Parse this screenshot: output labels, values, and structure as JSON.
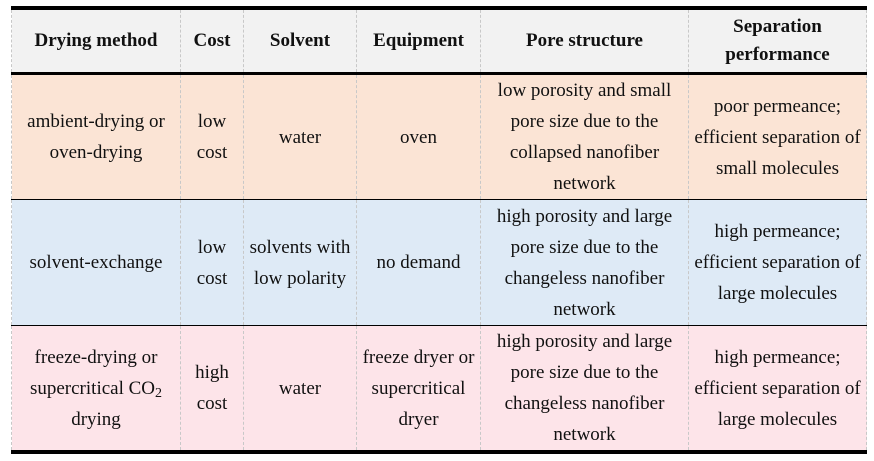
{
  "headers": [
    "Drying method",
    "Cost",
    "Solvent",
    "Equipment",
    "Pore structure",
    "Separation performance"
  ],
  "rows": [
    {
      "method": "ambient-drying or oven-drying",
      "cost": "low cost",
      "solvent": "water",
      "equipment": "oven",
      "pore": "low porosity and small pore size due to the collapsed nanofiber network",
      "separation": "poor permeance; efficient separation of small molecules"
    },
    {
      "method": "solvent-exchange",
      "cost": "low cost",
      "solvent": "solvents with low polarity",
      "equipment": "no demand",
      "pore": "high porosity and large pore size due to the changeless nanofiber network",
      "separation": "high permeance; efficient separation of large molecules"
    },
    {
      "method_pre": "freeze-drying or supercritical CO",
      "method_sub": "2",
      "method_post": " drying",
      "cost": "high cost",
      "solvent": "water",
      "equipment": "freeze dryer or supercritical dryer",
      "pore": "high porosity and large pore size due to the changeless nanofiber network",
      "separation": "high permeance; efficient separation of large molecules"
    }
  ],
  "colors": {
    "header": "#f2f2f2",
    "row1": "#fbe4d5",
    "row2": "#deeaf6",
    "row3": "#fde4e9"
  }
}
